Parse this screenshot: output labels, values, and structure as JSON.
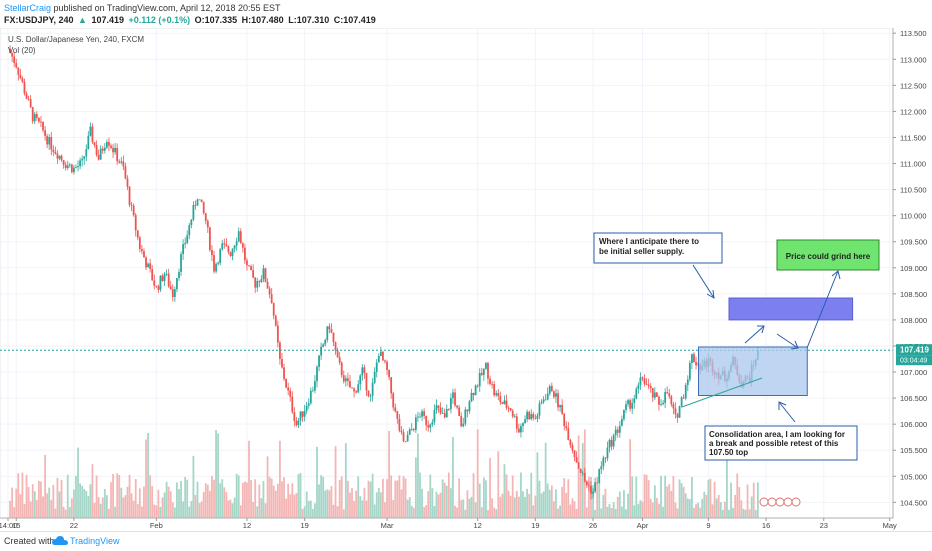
{
  "header": {
    "author": "StellarCraig",
    "published": "published on TradingView.com, April 12, 2018 20:55 EST",
    "symbol": "FX:USDJPY, 240",
    "last": "107.419",
    "change": "+0.112 (+0.1%)",
    "open": "O:107.335",
    "high": "H:107.480",
    "low": "L:107.310",
    "close": "C:107.419"
  },
  "chart_title": "U.S. Dollar/Japanese Yen, 240, FXCM",
  "vol_label": "Vol (20)",
  "price_label": "107.419",
  "countdown_label": "03:04:49",
  "colors": {
    "up": "#26a69a",
    "down": "#ef5350",
    "vol_up": "#a5d6c8",
    "vol_down": "#f4b6b5"
  },
  "annotations": {
    "supply": "Where I anticipate there to be initial seller supply.",
    "grind": "Price could grind here",
    "consolidation": "Consolidation area, I am looking for a break and possible retest of this 107.50 top"
  },
  "footer": {
    "created": "Created with",
    "brand": "TradingView"
  },
  "chart_data": {
    "type": "candlestick",
    "title": "U.S. Dollar/Japanese Yen, 240, FXCM",
    "y_axis": {
      "min": 104.2,
      "max": 113.6,
      "ticks": [
        "113.500",
        "113.000",
        "112.500",
        "112.000",
        "111.500",
        "111.000",
        "110.500",
        "110.000",
        "109.500",
        "109.000",
        "108.500",
        "108.000",
        "107.500",
        "107.000",
        "106.500",
        "106.000",
        "105.500",
        "105.000",
        "104.500"
      ]
    },
    "x_axis": {
      "ticks": [
        {
          "label": "14:00",
          "day": 0
        },
        {
          "label": "15",
          "day": 1
        },
        {
          "label": "22",
          "day": 8
        },
        {
          "label": "Feb",
          "day": 18
        },
        {
          "label": "12",
          "day": 29
        },
        {
          "label": "19",
          "day": 36
        },
        {
          "label": "Mar",
          "day": 46
        },
        {
          "label": "12",
          "day": 57
        },
        {
          "label": "19",
          "day": 64
        },
        {
          "label": "26",
          "day": 71
        },
        {
          "label": "Apr",
          "day": 77
        },
        {
          "label": "9",
          "day": 85
        },
        {
          "label": "16",
          "day": 92
        },
        {
          "label": "23",
          "day": 99
        },
        {
          "label": "May",
          "day": 107
        }
      ]
    },
    "price_path": [
      [
        0,
        113.2
      ],
      [
        1,
        112.9
      ],
      [
        2,
        112.4
      ],
      [
        3,
        111.9
      ],
      [
        4,
        111.7
      ],
      [
        5,
        111.4
      ],
      [
        6,
        111.2
      ],
      [
        7,
        111.0
      ],
      [
        8,
        110.9
      ],
      [
        9,
        111.0
      ],
      [
        10,
        111.6
      ],
      [
        11,
        111.1
      ],
      [
        12,
        111.5
      ],
      [
        13,
        111.2
      ],
      [
        14,
        110.9
      ],
      [
        15,
        110.1
      ],
      [
        16,
        109.4
      ],
      [
        17,
        109.0
      ],
      [
        18,
        108.6
      ],
      [
        19,
        108.9
      ],
      [
        20,
        108.5
      ],
      [
        21,
        109.2
      ],
      [
        22,
        109.8
      ],
      [
        23,
        110.4
      ],
      [
        24,
        109.9
      ],
      [
        25,
        109.0
      ],
      [
        26,
        109.4
      ],
      [
        27,
        109.3
      ],
      [
        28,
        109.7
      ],
      [
        29,
        109.0
      ],
      [
        30,
        108.7
      ],
      [
        31,
        108.9
      ],
      [
        32,
        108.4
      ],
      [
        33,
        107.2
      ],
      [
        34,
        106.6
      ],
      [
        35,
        106.0
      ],
      [
        36,
        106.3
      ],
      [
        37,
        106.7
      ],
      [
        38,
        107.4
      ],
      [
        39,
        107.9
      ],
      [
        40,
        107.2
      ],
      [
        41,
        106.8
      ],
      [
        42,
        106.6
      ],
      [
        43,
        107.0
      ],
      [
        44,
        106.5
      ],
      [
        45,
        107.4
      ],
      [
        46,
        107.0
      ],
      [
        47,
        106.2
      ],
      [
        48,
        105.6
      ],
      [
        49,
        105.9
      ],
      [
        50,
        106.2
      ],
      [
        51,
        106.0
      ],
      [
        52,
        106.3
      ],
      [
        53,
        106.1
      ],
      [
        54,
        106.6
      ],
      [
        55,
        105.9
      ],
      [
        56,
        106.5
      ],
      [
        57,
        106.8
      ],
      [
        58,
        107.1
      ],
      [
        59,
        106.6
      ],
      [
        60,
        106.4
      ],
      [
        61,
        106.3
      ],
      [
        62,
        105.9
      ],
      [
        63,
        106.2
      ],
      [
        64,
        106.1
      ],
      [
        65,
        106.5
      ],
      [
        66,
        106.7
      ],
      [
        67,
        106.3
      ],
      [
        68,
        105.8
      ],
      [
        69,
        105.3
      ],
      [
        70,
        104.9
      ],
      [
        71,
        104.7
      ],
      [
        72,
        105.2
      ],
      [
        73,
        105.6
      ],
      [
        74,
        105.9
      ],
      [
        75,
        106.3
      ],
      [
        76,
        106.5
      ],
      [
        77,
        106.9
      ],
      [
        78,
        106.6
      ],
      [
        79,
        106.4
      ],
      [
        80,
        106.6
      ],
      [
        81,
        106.1
      ],
      [
        82,
        106.6
      ],
      [
        83,
        107.3
      ],
      [
        84,
        107.1
      ],
      [
        85,
        107.2
      ],
      [
        86,
        107.0
      ],
      [
        87,
        106.9
      ],
      [
        88,
        107.2
      ],
      [
        89,
        106.8
      ],
      [
        90,
        106.9
      ],
      [
        91,
        107.42
      ]
    ],
    "last_price": 107.419,
    "boxes": [
      {
        "name": "supply-zone",
        "y_top": 108.42,
        "y_bottom": 108.0,
        "d0": 87.5,
        "d1": 102.5,
        "color": "#7b7ff0"
      },
      {
        "name": "consolidation-zone",
        "y_top": 107.48,
        "y_bottom": 106.55,
        "d0": 83.8,
        "d1": 97.0,
        "color": "#a9c7ee"
      }
    ]
  }
}
